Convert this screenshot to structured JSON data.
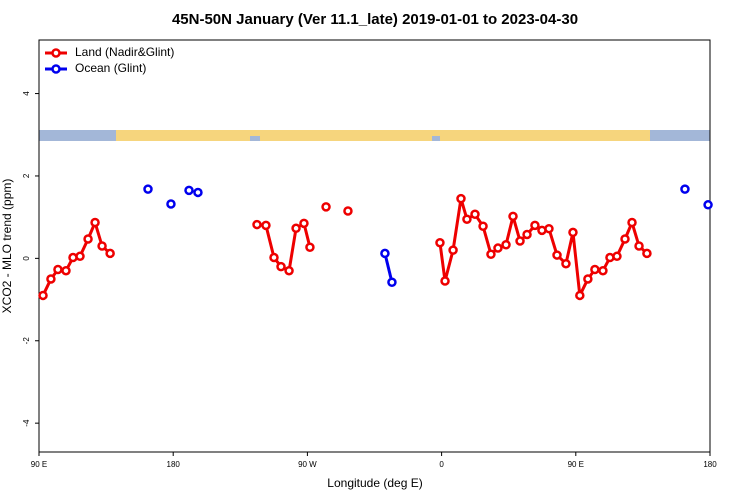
{
  "chart_data": {
    "type": "line",
    "title": "45N-50N January (Ver 11.1_late)   2019-01-01 to 2023-04-30",
    "xlabel": "Longitude (deg E)",
    "ylabel": "XCO2 - MLO trend (ppm)",
    "xlim": [
      90,
      540
    ],
    "ylim": [
      -4.7,
      5.3
    ],
    "xticks": [
      {
        "value": 90,
        "label": "90 E"
      },
      180,
      {
        "value": 270,
        "label": "90 W"
      },
      {
        "value": 360,
        "label": "0"
      },
      {
        "value": 450,
        "label": "90 E"
      },
      {
        "value": 540,
        "label": "180"
      }
    ],
    "yticks": [
      -4,
      -2,
      0,
      2,
      4
    ],
    "legend": "top-left",
    "series": [
      {
        "name": "Land (Nadir&Glint)",
        "color": "#ee0000",
        "x": [
          92.7,
          98.0,
          102.7,
          108.1,
          112.8,
          117.5,
          122.9,
          127.6,
          132.3,
          137.7,
          null,
          236.2,
          242.2,
          247.6,
          252.3,
          257.7,
          262.4,
          267.7,
          271.7,
          null,
          282.5,
          null,
          297.2,
          null,
          358.9,
          362.3,
          367.7,
          373.0,
          377.0,
          382.4,
          387.8,
          393.1,
          397.8,
          403.2,
          407.9,
          412.6,
          417.3,
          422.6,
          427.3,
          432.0,
          437.4,
          443.4,
          448.1,
          452.7,
          458.1,
          462.8,
          468.2,
          472.9,
          477.6,
          483.0,
          487.7,
          492.4,
          497.7
        ],
        "values": [
          -0.9,
          -0.5,
          -0.27,
          -0.3,
          0.02,
          0.05,
          0.47,
          0.87,
          0.3,
          0.12,
          null,
          0.82,
          0.8,
          0.02,
          -0.2,
          -0.3,
          0.73,
          0.85,
          0.27,
          null,
          1.25,
          null,
          1.15,
          null,
          0.38,
          -0.55,
          0.2,
          1.45,
          0.95,
          1.07,
          0.78,
          0.1,
          0.25,
          0.33,
          1.02,
          0.42,
          0.58,
          0.8,
          0.68,
          0.72,
          0.08,
          -0.13,
          0.63,
          -0.9,
          -0.5,
          -0.27,
          -0.3,
          0.02,
          0.05,
          0.47,
          0.87,
          0.3,
          0.12
        ]
      },
      {
        "name": "Ocean (Glint)",
        "color": "#0000ee",
        "x": [
          163.1,
          null,
          178.5,
          null,
          190.6,
          null,
          196.6,
          null,
          322.0,
          326.7,
          null,
          523.2,
          null,
          538.7
        ],
        "values": [
          1.68,
          null,
          1.32,
          null,
          1.65,
          null,
          1.6,
          null,
          0.12,
          -0.58,
          null,
          1.68,
          null,
          1.3
        ]
      }
    ]
  }
}
